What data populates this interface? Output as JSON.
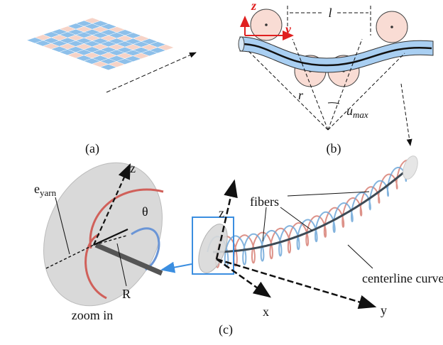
{
  "panel_a": {
    "label": "(a)"
  },
  "panel_b": {
    "label": "(b)",
    "axis_z": "z",
    "axis_y": "y",
    "length": "l",
    "radius": "r",
    "angle": {
      "base": "u",
      "sub": "max"
    }
  },
  "panel_c": {
    "label": "(c)",
    "zoom": {
      "axis_z": "z",
      "thickness": {
        "base": "e",
        "sub": "yarn"
      },
      "angle": "θ",
      "radius": "R",
      "caption": "zoom in"
    },
    "annotations": [
      "fibers",
      "centerline curve"
    ],
    "axes": [
      "z",
      "x",
      "y"
    ]
  }
}
